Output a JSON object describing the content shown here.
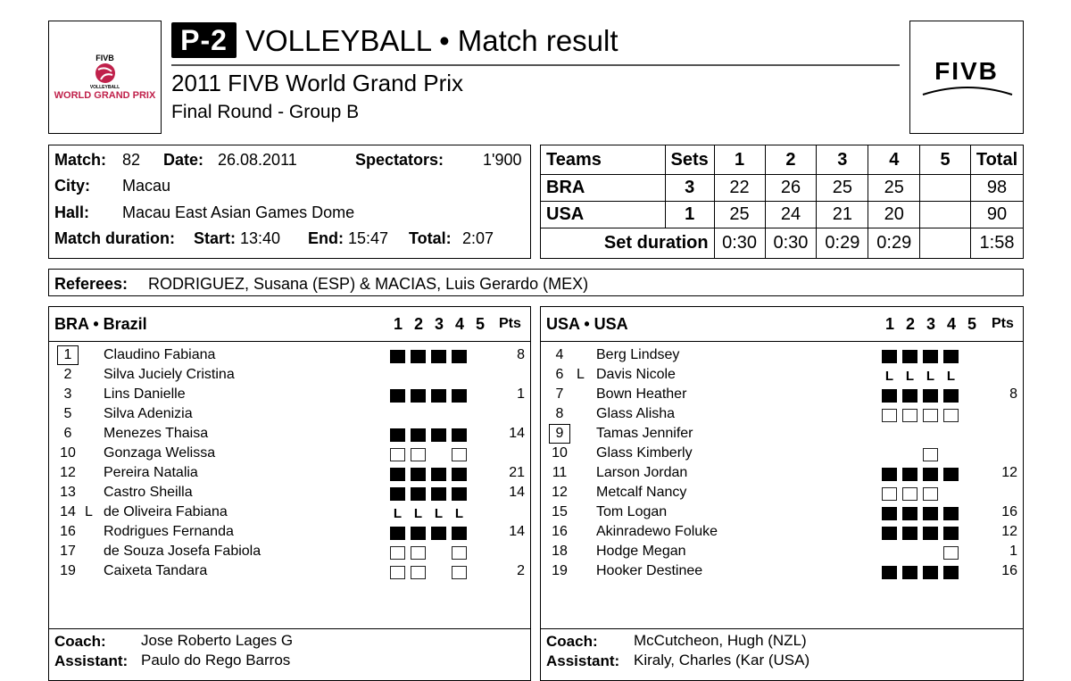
{
  "header": {
    "badge": "P-2",
    "title": "VOLLEYBALL • Match result",
    "competition": "2011 FIVB World Grand Prix",
    "round": "Final Round - Group B",
    "left_logo": {
      "top": "FIVB",
      "small": "VOLLEYBALL",
      "main": "WORLD GRAND PRIX",
      "color": "#c0214b"
    },
    "right_logo": "FIVB"
  },
  "match": {
    "match_label": "Match:",
    "match_no": "82",
    "date_label": "Date:",
    "date": "26.08.2011",
    "spectators_label": "Spectators:",
    "spectators": "1'900",
    "city_label": "City:",
    "city": "Macau",
    "hall_label": "Hall:",
    "hall": "Macau East Asian Games Dome",
    "duration_label": "Match duration:",
    "start_label": "Start:",
    "start": "13:40",
    "end_label": "End:",
    "end": "15:47",
    "total_label": "Total:",
    "total": "2:07"
  },
  "score": {
    "headers": [
      "Teams",
      "Sets",
      "1",
      "2",
      "3",
      "4",
      "5",
      "Total"
    ],
    "rows": [
      [
        "BRA",
        "3",
        "22",
        "26",
        "25",
        "25",
        "",
        "98"
      ],
      [
        "USA",
        "1",
        "25",
        "24",
        "21",
        "20",
        "",
        "90"
      ]
    ],
    "duration_label": "Set duration",
    "durations": [
      "0:30",
      "0:30",
      "0:29",
      "0:29",
      "",
      "1:58"
    ]
  },
  "referees": {
    "label": "Referees:",
    "value": "RODRIGUEZ, Susana (ESP) & MACIAS, Luis Gerardo (MEX)"
  },
  "teams": [
    {
      "title": "BRA • Brazil",
      "set_headers": [
        "1",
        "2",
        "3",
        "4",
        "5"
      ],
      "pts_label": "Pts",
      "players": [
        {
          "no": "1",
          "captain": true,
          "libero": "",
          "name": "Claudino Fabiana",
          "sets": [
            "F",
            "F",
            "F",
            "F",
            ""
          ],
          "pts": "8"
        },
        {
          "no": "2",
          "libero": "",
          "name": "Silva Juciely Cristina",
          "sets": [
            "",
            "",
            "",
            "",
            ""
          ],
          "pts": ""
        },
        {
          "no": "3",
          "libero": "",
          "name": "Lins Danielle",
          "sets": [
            "F",
            "F",
            "F",
            "F",
            ""
          ],
          "pts": "1"
        },
        {
          "no": "5",
          "libero": "",
          "name": "Silva Adenizia",
          "sets": [
            "",
            "",
            "",
            "",
            ""
          ],
          "pts": ""
        },
        {
          "no": "6",
          "libero": "",
          "name": "Menezes Thaisa",
          "sets": [
            "F",
            "F",
            "F",
            "F",
            ""
          ],
          "pts": "14"
        },
        {
          "no": "10",
          "libero": "",
          "name": "Gonzaga Welissa",
          "sets": [
            "E",
            "E",
            "",
            "E",
            ""
          ],
          "pts": ""
        },
        {
          "no": "12",
          "libero": "",
          "name": "Pereira Natalia",
          "sets": [
            "F",
            "F",
            "F",
            "F",
            ""
          ],
          "pts": "21"
        },
        {
          "no": "13",
          "libero": "",
          "name": "Castro Sheilla",
          "sets": [
            "F",
            "F",
            "F",
            "F",
            ""
          ],
          "pts": "14"
        },
        {
          "no": "14",
          "libero": "L",
          "name": "de Oliveira Fabiana",
          "sets": [
            "L",
            "L",
            "L",
            "L",
            ""
          ],
          "pts": ""
        },
        {
          "no": "16",
          "libero": "",
          "name": "Rodrigues Fernanda",
          "sets": [
            "F",
            "F",
            "F",
            "F",
            ""
          ],
          "pts": "14"
        },
        {
          "no": "17",
          "libero": "",
          "name": "de Souza Josefa Fabiola",
          "sets": [
            "E",
            "E",
            "",
            "E",
            ""
          ],
          "pts": ""
        },
        {
          "no": "19",
          "libero": "",
          "name": "Caixeta Tandara",
          "sets": [
            "E",
            "E",
            "",
            "E",
            ""
          ],
          "pts": "2"
        }
      ],
      "coach_label": "Coach:",
      "coach": "Jose Roberto Lages G",
      "assistant_label": "Assistant:",
      "assistant": "Paulo do Rego Barros"
    },
    {
      "title": "USA • USA",
      "set_headers": [
        "1",
        "2",
        "3",
        "4",
        "5"
      ],
      "pts_label": "Pts",
      "players": [
        {
          "no": "4",
          "libero": "",
          "name": "Berg Lindsey",
          "sets": [
            "F",
            "F",
            "F",
            "F",
            ""
          ],
          "pts": ""
        },
        {
          "no": "6",
          "libero": "L",
          "name": "Davis Nicole",
          "sets": [
            "L",
            "L",
            "L",
            "L",
            ""
          ],
          "pts": ""
        },
        {
          "no": "7",
          "libero": "",
          "name": "Bown Heather",
          "sets": [
            "F",
            "F",
            "F",
            "F",
            ""
          ],
          "pts": "8"
        },
        {
          "no": "8",
          "libero": "",
          "name": "Glass Alisha",
          "sets": [
            "E",
            "E",
            "E",
            "E",
            ""
          ],
          "pts": ""
        },
        {
          "no": "9",
          "captain": true,
          "libero": "",
          "name": "Tamas Jennifer",
          "sets": [
            "",
            "",
            "",
            "",
            ""
          ],
          "pts": ""
        },
        {
          "no": "10",
          "libero": "",
          "name": "Glass Kimberly",
          "sets": [
            "",
            "",
            "E",
            "",
            ""
          ],
          "pts": ""
        },
        {
          "no": "11",
          "libero": "",
          "name": "Larson Jordan",
          "sets": [
            "F",
            "F",
            "F",
            "F",
            ""
          ],
          "pts": "12"
        },
        {
          "no": "12",
          "libero": "",
          "name": "Metcalf Nancy",
          "sets": [
            "E",
            "E",
            "E",
            "",
            ""
          ],
          "pts": ""
        },
        {
          "no": "15",
          "libero": "",
          "name": "Tom Logan",
          "sets": [
            "F",
            "F",
            "F",
            "F",
            ""
          ],
          "pts": "16"
        },
        {
          "no": "16",
          "libero": "",
          "name": "Akinradewo Foluke",
          "sets": [
            "F",
            "F",
            "F",
            "F",
            ""
          ],
          "pts": "12"
        },
        {
          "no": "18",
          "libero": "",
          "name": "Hodge Megan",
          "sets": [
            "",
            "",
            "",
            "E",
            ""
          ],
          "pts": "1"
        },
        {
          "no": "19",
          "libero": "",
          "name": "Hooker Destinee",
          "sets": [
            "F",
            "F",
            "F",
            "F",
            ""
          ],
          "pts": "16"
        }
      ],
      "coach_label": "Coach:",
      "coach": "McCutcheon, Hugh (NZL)",
      "assistant_label": "Assistant:",
      "assistant": "Kiraly, Charles (Kar (USA)"
    }
  ]
}
